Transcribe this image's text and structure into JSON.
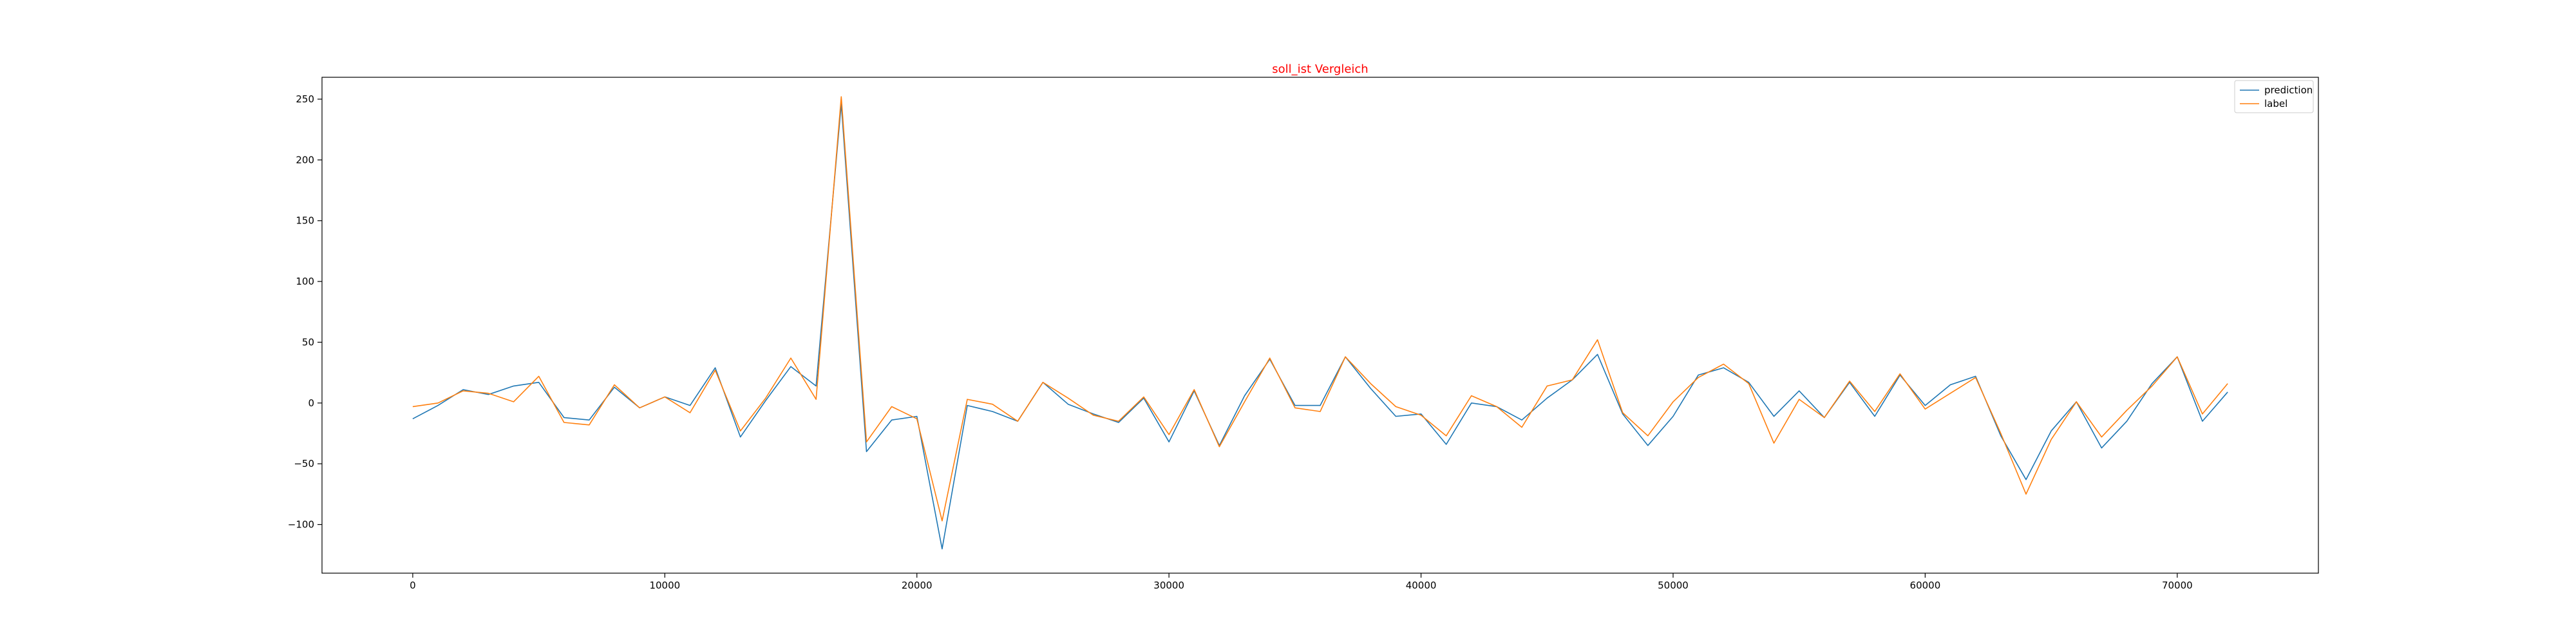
{
  "chart_data": {
    "type": "line",
    "title": "soll_ist Vergleich",
    "title_color": "#ff0000",
    "xlabel": "",
    "ylabel": "",
    "xlim": [
      -3600,
      75600
    ],
    "ylim": [
      -140,
      268
    ],
    "x_ticks": [
      0,
      10000,
      20000,
      30000,
      40000,
      50000,
      60000,
      70000
    ],
    "x_tick_labels": [
      "0",
      "10000",
      "20000",
      "30000",
      "40000",
      "50000",
      "60000",
      "70000"
    ],
    "y_ticks": [
      -100,
      -50,
      0,
      50,
      100,
      150,
      200,
      250
    ],
    "y_tick_labels": [
      "−100",
      "−50",
      "0",
      "50",
      "100",
      "150",
      "200",
      "250"
    ],
    "grid": false,
    "legend_position": "top-right",
    "x": [
      0,
      1000,
      2000,
      3000,
      4000,
      5000,
      6000,
      7000,
      8000,
      9000,
      10000,
      11000,
      12000,
      13000,
      14000,
      15000,
      16000,
      17000,
      18000,
      19000,
      20000,
      21000,
      22000,
      23000,
      24000,
      25000,
      26000,
      27000,
      28000,
      29000,
      30000,
      31000,
      32000,
      33000,
      34000,
      35000,
      36000,
      37000,
      38000,
      39000,
      40000,
      41000,
      42000,
      43000,
      44000,
      45000,
      46000,
      47000,
      48000,
      49000,
      50000,
      51000,
      52000,
      53000,
      54000,
      55000,
      56000,
      57000,
      58000,
      59000,
      60000,
      61000,
      62000,
      63000,
      64000,
      65000,
      66000,
      67000,
      68000,
      69000,
      70000,
      71000,
      72000
    ],
    "series": [
      {
        "name": "prediction",
        "color": "#1f77b4",
        "values": [
          -13,
          -2,
          11,
          7,
          14,
          17,
          -12,
          -14,
          13,
          -4,
          5,
          -2,
          29,
          -28,
          2,
          30,
          14,
          246,
          -40,
          -14,
          -11,
          -120,
          -2,
          -7,
          -15,
          17,
          -1,
          -9,
          -16,
          4,
          -32,
          10,
          -35,
          6,
          36,
          -2,
          -2,
          38,
          12,
          -11,
          -9,
          -34,
          0,
          -3,
          -14,
          4,
          19,
          40,
          -9,
          -35,
          -11,
          23,
          29,
          17,
          -11,
          10,
          -12,
          17,
          -11,
          23,
          -2,
          15,
          22,
          -27,
          -63,
          -23,
          1,
          -37,
          -15,
          16,
          38,
          -15,
          9
        ]
      },
      {
        "name": "label",
        "color": "#ff7f0e",
        "values": [
          -3,
          0,
          10,
          8,
          1,
          22,
          -16,
          -18,
          15,
          -4,
          5,
          -8,
          27,
          -23,
          4,
          37,
          3,
          252,
          -32,
          -3,
          -13,
          -97,
          3,
          -1,
          -15,
          17,
          4,
          -10,
          -15,
          5,
          -26,
          11,
          -36,
          1,
          37,
          -4,
          -7,
          38,
          16,
          -3,
          -10,
          -27,
          6,
          -3,
          -20,
          14,
          19,
          52,
          -8,
          -27,
          1,
          21,
          32,
          16,
          -33,
          3,
          -12,
          18,
          -7,
          24,
          -5,
          8,
          21,
          -25,
          -75,
          -30,
          1,
          -28,
          -6,
          14,
          38,
          -9,
          16
        ]
      }
    ]
  }
}
